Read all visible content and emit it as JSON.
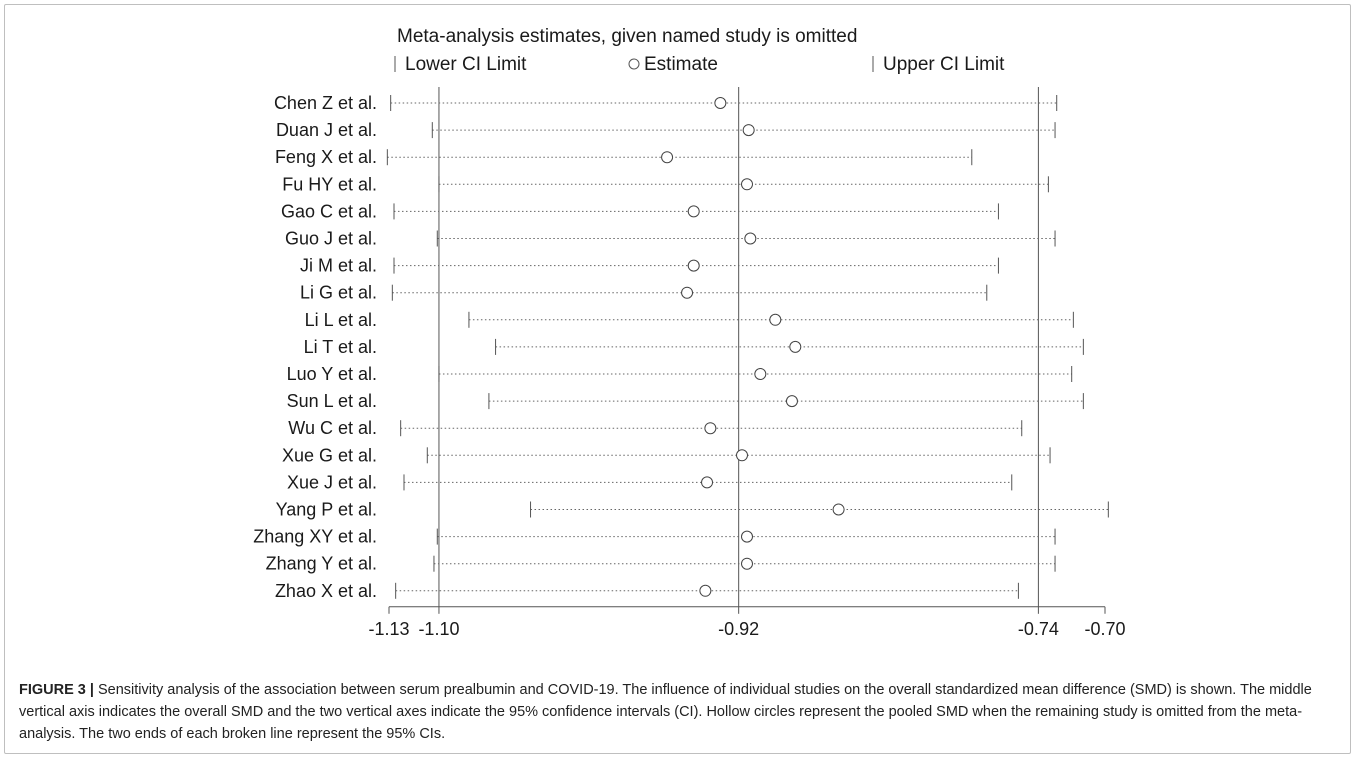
{
  "chart_data": {
    "type": "forest-sensitivity",
    "title": "Meta-analysis estimates, given named study is omitted",
    "legend": {
      "lower": "Lower CI Limit",
      "estimate": "Estimate",
      "upper": "Upper CI Limit"
    },
    "x_ticks": [
      {
        "value": -1.13,
        "label": "-1.13"
      },
      {
        "value": -1.1,
        "label": "-1.10"
      },
      {
        "value": -0.92,
        "label": "-0.92"
      },
      {
        "value": -0.74,
        "label": "-0.74"
      },
      {
        "value": -0.7,
        "label": "-0.70"
      }
    ],
    "xlim": [
      -1.13,
      -0.7
    ],
    "reference_lines": [
      -1.1,
      -0.92,
      -0.74
    ],
    "studies": [
      {
        "name": "Chen Z et al.",
        "lower": -1.129,
        "estimate": -0.931,
        "upper": -0.729
      },
      {
        "name": "Duan J et al.",
        "lower": -1.104,
        "estimate": -0.914,
        "upper": -0.73
      },
      {
        "name": "Feng X et al.",
        "lower": -1.131,
        "estimate": -0.963,
        "upper": -0.78
      },
      {
        "name": "Fu HY et al.",
        "lower": -1.1,
        "estimate": -0.915,
        "upper": -0.734
      },
      {
        "name": "Gao C et al.",
        "lower": -1.127,
        "estimate": -0.947,
        "upper": -0.764
      },
      {
        "name": "Guo J et al.",
        "lower": -1.101,
        "estimate": -0.913,
        "upper": -0.73
      },
      {
        "name": "Ji M et al.",
        "lower": -1.127,
        "estimate": -0.947,
        "upper": -0.764
      },
      {
        "name": "Li G et al.",
        "lower": -1.128,
        "estimate": -0.951,
        "upper": -0.771
      },
      {
        "name": "Li L et al.",
        "lower": -1.082,
        "estimate": -0.898,
        "upper": -0.719
      },
      {
        "name": "Li T et al.",
        "lower": -1.066,
        "estimate": -0.886,
        "upper": -0.713
      },
      {
        "name": "Luo Y et al.",
        "lower": -1.1,
        "estimate": -0.907,
        "upper": -0.72
      },
      {
        "name": "Sun L et al.",
        "lower": -1.07,
        "estimate": -0.888,
        "upper": -0.713
      },
      {
        "name": "Wu C et al.",
        "lower": -1.123,
        "estimate": -0.937,
        "upper": -0.75
      },
      {
        "name": "Xue G et al.",
        "lower": -1.107,
        "estimate": -0.918,
        "upper": -0.733
      },
      {
        "name": "Xue J et al.",
        "lower": -1.121,
        "estimate": -0.939,
        "upper": -0.756
      },
      {
        "name": "Yang P et al.",
        "lower": -1.045,
        "estimate": -0.86,
        "upper": -0.698
      },
      {
        "name": "Zhang XY et al.",
        "lower": -1.101,
        "estimate": -0.915,
        "upper": -0.73
      },
      {
        "name": "Zhang Y et al.",
        "lower": -1.103,
        "estimate": -0.915,
        "upper": -0.73
      },
      {
        "name": "Zhao X et al.",
        "lower": -1.126,
        "estimate": -0.94,
        "upper": -0.752
      }
    ]
  },
  "caption": {
    "label": "FIGURE 3 |",
    "text": "Sensitivity analysis of the association between serum prealbumin and COVID-19. The influence of individual studies on the overall standardized mean difference (SMD) is shown. The middle vertical axis indicates the overall SMD and the two vertical axes indicate the 95% confidence intervals (CI). Hollow circles represent the pooled SMD when the remaining study is omitted from the meta-analysis. The two ends of each broken line represent the 95% CIs."
  }
}
